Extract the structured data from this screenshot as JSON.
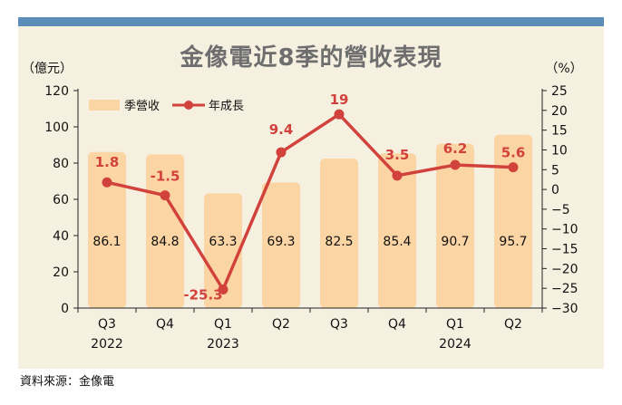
{
  "chart_data": {
    "type": "bar",
    "title": "金像電近8季的營收表現",
    "categories": [
      "Q3",
      "Q4",
      "Q1",
      "Q2",
      "Q3",
      "Q4",
      "Q1",
      "Q2"
    ],
    "year_labels": [
      "2022",
      "",
      "2023",
      "",
      "",
      "",
      "2024",
      ""
    ],
    "left_unit": "（億元）",
    "right_unit": "（%）",
    "left_ylim": [
      0,
      120
    ],
    "left_ticks": [
      0,
      20,
      40,
      60,
      80,
      100,
      120
    ],
    "right_ylim": [
      -30,
      25
    ],
    "right_ticks": [
      25,
      20,
      15,
      10,
      5,
      0,
      -5,
      -10,
      -15,
      -20,
      -25,
      -30
    ],
    "series": [
      {
        "name": "季營收",
        "type": "bar",
        "axis": "left",
        "values": [
          86.1,
          84.8,
          63.3,
          69.3,
          82.5,
          85.4,
          90.7,
          95.7
        ],
        "labels": [
          "86.1",
          "84.8",
          "63.3",
          "69.3",
          "82.5",
          "85.4",
          "90.7",
          "95.7"
        ]
      },
      {
        "name": "年成長",
        "type": "line",
        "axis": "right",
        "values": [
          1.8,
          -1.5,
          -25.3,
          9.4,
          19,
          3.5,
          6.2,
          5.6
        ],
        "labels": [
          "1.8",
          "-1.5",
          "-25.3",
          "9.4",
          "19",
          "3.5",
          "6.2",
          "5.6"
        ]
      }
    ],
    "legend": {
      "position": "top-left",
      "items": [
        "季營收",
        "年成長"
      ]
    }
  },
  "source": "資料來源：金像電",
  "colors": {
    "bar": "#fcd5a4",
    "line": "#d2423c",
    "label_red": "#d2423c",
    "title": "#6e6e6e",
    "topbar": "#5b8db8",
    "panel": "#f6f0e1"
  }
}
